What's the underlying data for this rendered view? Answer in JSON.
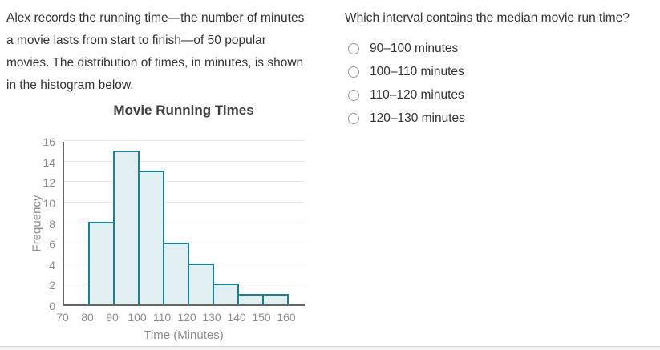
{
  "intro_lines": [
    "Alex records the running time—the number of minutes",
    "a movie lasts from start to finish—of 50 popular",
    "movies. The distribution of times, in minutes, is shown",
    "in the histogram below."
  ],
  "question": {
    "text": "Which interval contains the median movie run time?",
    "options": [
      {
        "label": "90–100 minutes",
        "selected": false
      },
      {
        "label": "100–110 minutes",
        "selected": false
      },
      {
        "label": "110–120 minutes",
        "selected": false
      },
      {
        "label": "120–130 minutes",
        "selected": false
      }
    ]
  },
  "chart_data": {
    "type": "bar",
    "title": "Movie Running Times",
    "xlabel": "Time (Minutes)",
    "ylabel": "Frequency",
    "categories": [
      "80–90",
      "90–100",
      "100–110",
      "110–120",
      "120–130",
      "130–140",
      "140–150",
      "150–160"
    ],
    "values": [
      8,
      15,
      13,
      6,
      4,
      2,
      1,
      1
    ],
    "total": 50,
    "x_ticks": [
      70,
      80,
      90,
      100,
      110,
      120,
      130,
      140,
      150,
      160
    ],
    "y_ticks": [
      0,
      2,
      4,
      6,
      8,
      10,
      12,
      14,
      16
    ],
    "ylim": [
      0,
      16
    ],
    "grid": true,
    "legend": "none",
    "colors": {
      "bar_fill": "#e1eff2",
      "bar_border": "#1e7f8e",
      "axis": "#666666",
      "gridline": "#e8e8e8",
      "tick_label": "#8c8c8c"
    }
  }
}
